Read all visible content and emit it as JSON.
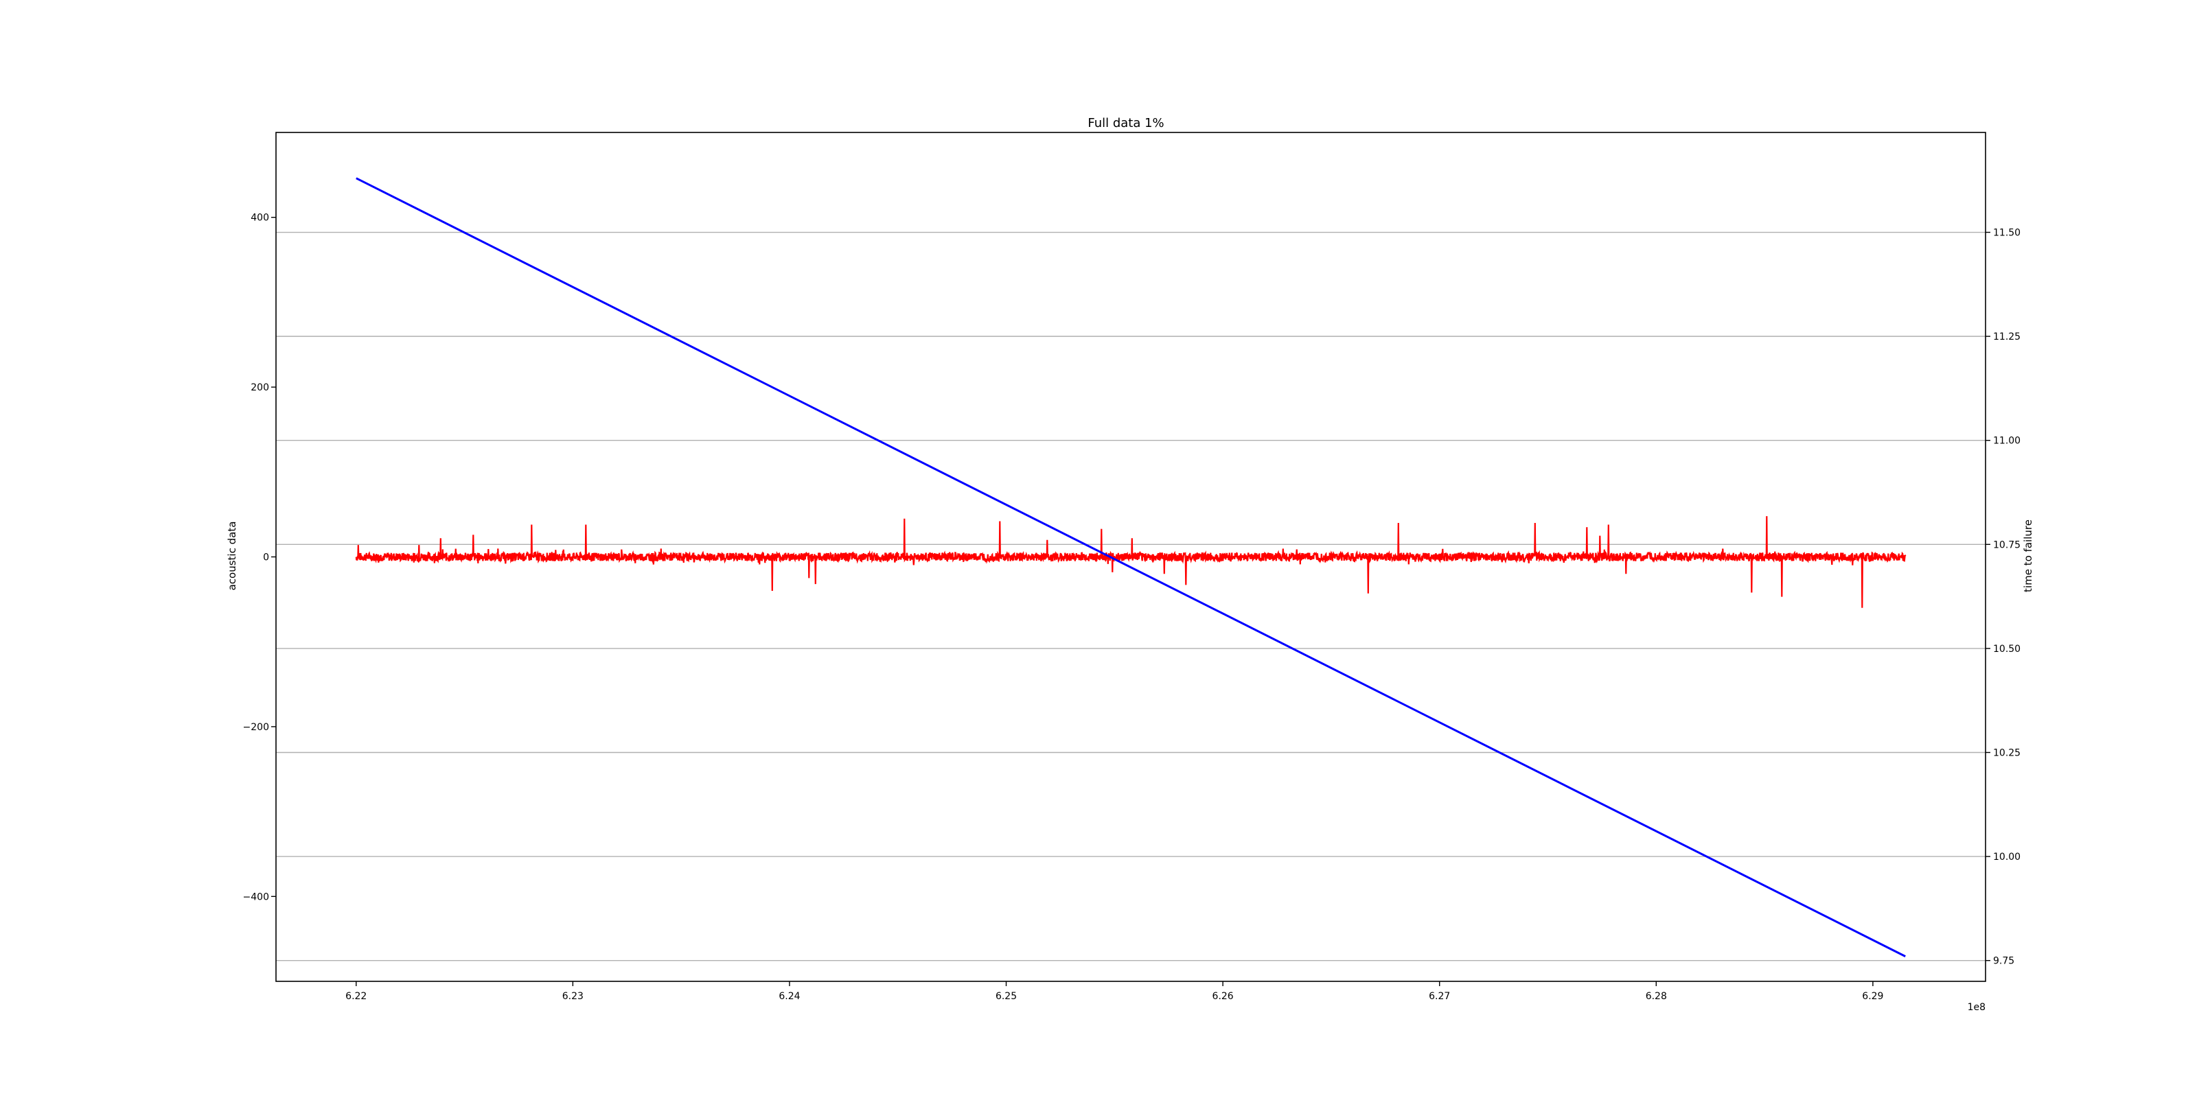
{
  "chart_data": {
    "type": "line",
    "title": "Full data 1%",
    "xlabel": "",
    "x_offset_label": "1e8",
    "x_ticks": [
      6.22,
      6.23,
      6.24,
      6.25,
      6.26,
      6.27,
      6.28,
      6.29
    ],
    "x_tick_labels": [
      "6.22",
      "6.23",
      "6.24",
      "6.25",
      "6.26",
      "6.27",
      "6.28",
      "6.29"
    ],
    "xlim": [
      6.2163,
      6.2952
    ],
    "grid": "horizontal, right axis",
    "left_axis": {
      "label": "acoustic data",
      "color": "#ff0000",
      "ylim": [
        -500,
        500
      ],
      "ticks": [
        -400,
        -200,
        0,
        200,
        400
      ],
      "tick_labels": [
        "−400",
        "−200",
        "0",
        "200",
        "400"
      ]
    },
    "right_axis": {
      "label": "time to failure",
      "color": "#0000ff",
      "ylim": [
        9.7,
        11.74
      ],
      "ticks": [
        9.75,
        10.0,
        10.25,
        10.5,
        10.75,
        11.0,
        11.25,
        11.5
      ],
      "tick_labels": [
        "9.75",
        "10.00",
        "10.25",
        "10.50",
        "10.75",
        "11.00",
        "11.25",
        "11.50"
      ]
    },
    "series": [
      {
        "name": "acoustic data",
        "axis": "left",
        "color": "#ff0000",
        "style": "dense noisy line around 0",
        "x_range": [
          6.22,
          6.2915
        ],
        "baseline": 0,
        "noise_amplitude": 5,
        "spikes": [
          {
            "x": 6.2201,
            "y": 14
          },
          {
            "x": 6.2229,
            "y": 14
          },
          {
            "x": 6.2239,
            "y": 22
          },
          {
            "x": 6.2254,
            "y": 26
          },
          {
            "x": 6.2281,
            "y": 38
          },
          {
            "x": 6.2306,
            "y": 38
          },
          {
            "x": 6.2392,
            "y": -40
          },
          {
            "x": 6.2409,
            "y": -25
          },
          {
            "x": 6.2412,
            "y": -32
          },
          {
            "x": 6.2453,
            "y": 45
          },
          {
            "x": 6.2497,
            "y": 42
          },
          {
            "x": 6.2519,
            "y": 20
          },
          {
            "x": 6.2544,
            "y": 33
          },
          {
            "x": 6.2549,
            "y": -18
          },
          {
            "x": 6.2558,
            "y": 22
          },
          {
            "x": 6.2573,
            "y": -20
          },
          {
            "x": 6.2583,
            "y": -33
          },
          {
            "x": 6.2667,
            "y": -43
          },
          {
            "x": 6.2681,
            "y": 40
          },
          {
            "x": 6.2744,
            "y": 40
          },
          {
            "x": 6.2768,
            "y": 35
          },
          {
            "x": 6.2774,
            "y": 25
          },
          {
            "x": 6.2778,
            "y": 38
          },
          {
            "x": 6.2786,
            "y": -20
          },
          {
            "x": 6.2844,
            "y": -42
          },
          {
            "x": 6.2851,
            "y": 48
          },
          {
            "x": 6.2858,
            "y": -47
          },
          {
            "x": 6.2895,
            "y": -60
          }
        ]
      },
      {
        "name": "time to failure",
        "axis": "right",
        "color": "#0000ff",
        "x": [
          6.22,
          6.2915
        ],
        "y": [
          11.63,
          9.76
        ]
      }
    ]
  }
}
